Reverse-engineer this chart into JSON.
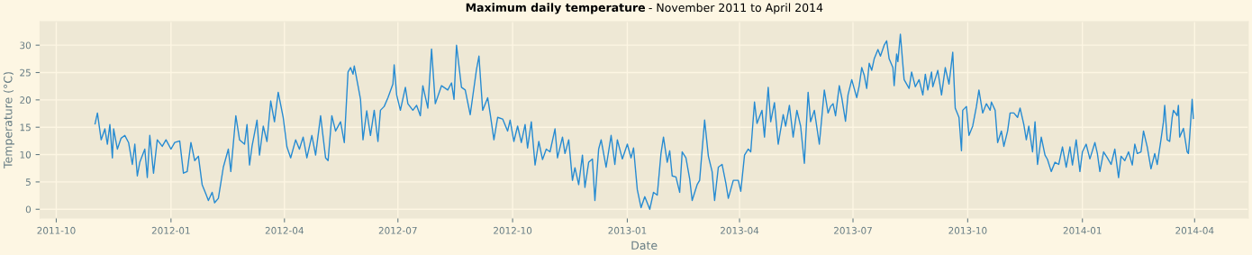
{
  "chart_data": {
    "type": "line",
    "title": "Maximum daily temperature",
    "subtitle": "- November 2011 to April 2014",
    "xlabel": "Date",
    "ylabel": "Temperature (°C)",
    "series": [
      {
        "color": "#268bd2",
        "x": [
          "2011-11-01",
          "2011-11-03",
          "2011-11-06",
          "2011-11-09",
          "2011-11-11",
          "2011-11-13",
          "2011-11-15",
          "2011-11-16",
          "2011-11-19",
          "2011-11-22",
          "2011-11-25",
          "2011-11-28",
          "2011-12-01",
          "2011-12-03",
          "2011-12-05",
          "2011-12-07",
          "2011-12-11",
          "2011-12-13",
          "2011-12-15",
          "2011-12-18",
          "2011-12-21",
          "2011-12-25",
          "2011-12-28",
          "2012-01-01",
          "2012-01-04",
          "2012-01-08",
          "2012-01-11",
          "2012-01-14",
          "2012-01-17",
          "2012-01-20",
          "2012-01-23",
          "2012-01-26",
          "2012-01-29",
          "2012-01-31",
          "2012-02-03",
          "2012-02-05",
          "2012-02-08",
          "2012-02-12",
          "2012-02-16",
          "2012-02-18",
          "2012-02-22",
          "2012-02-25",
          "2012-02-29",
          "2012-03-02",
          "2012-03-04",
          "2012-03-06",
          "2012-03-10",
          "2012-03-12",
          "2012-03-15",
          "2012-03-18",
          "2012-03-21",
          "2012-03-24",
          "2012-03-27",
          "2012-03-31",
          "2012-04-03",
          "2012-04-06",
          "2012-04-10",
          "2012-04-13",
          "2012-04-16",
          "2012-04-19",
          "2012-04-23",
          "2012-04-26",
          "2012-04-30",
          "2012-05-04",
          "2012-05-06",
          "2012-05-09",
          "2012-05-12",
          "2012-05-16",
          "2012-05-19",
          "2012-05-22",
          "2012-05-24",
          "2012-05-26",
          "2012-05-27",
          "2012-05-30",
          "2012-06-01",
          "2012-06-03",
          "2012-06-06",
          "2012-06-09",
          "2012-06-12",
          "2012-06-15",
          "2012-06-17",
          "2012-06-20",
          "2012-06-23",
          "2012-06-27",
          "2012-06-28",
          "2012-06-30",
          "2012-07-03",
          "2012-07-07",
          "2012-07-09",
          "2012-07-13",
          "2012-07-16",
          "2012-07-19",
          "2012-07-21",
          "2012-07-25",
          "2012-07-28",
          "2012-07-31",
          "2012-08-05",
          "2012-08-10",
          "2012-08-13",
          "2012-08-15",
          "2012-08-17",
          "2012-08-21",
          "2012-08-24",
          "2012-08-28",
          "2012-09-02",
          "2012-09-04",
          "2012-09-07",
          "2012-09-11",
          "2012-09-13",
          "2012-09-16",
          "2012-09-19",
          "2012-09-23",
          "2012-09-27",
          "2012-09-29",
          "2012-10-02",
          "2012-10-05",
          "2012-10-08",
          "2012-10-11",
          "2012-10-13",
          "2012-10-16",
          "2012-10-19",
          "2012-10-22",
          "2012-10-25",
          "2012-10-28",
          "2012-10-31",
          "2012-11-04",
          "2012-11-06",
          "2012-11-10",
          "2012-11-12",
          "2012-11-15",
          "2012-11-18",
          "2012-11-20",
          "2012-11-23",
          "2012-11-26",
          "2012-11-28",
          "2012-12-01",
          "2012-12-04",
          "2012-12-06",
          "2012-12-09",
          "2012-12-11",
          "2012-12-15",
          "2012-12-19",
          "2012-12-22",
          "2012-12-24",
          "2012-12-28",
          "2013-01-01",
          "2013-01-04",
          "2013-01-06",
          "2013-01-09",
          "2013-01-12",
          "2013-01-15",
          "2013-01-19",
          "2013-01-22",
          "2013-01-25",
          "2013-01-28",
          "2013-01-30",
          "2013-02-02",
          "2013-02-04",
          "2013-02-06",
          "2013-02-09",
          "2013-02-12",
          "2013-02-14",
          "2013-02-17",
          "2013-02-20",
          "2013-02-22",
          "2013-02-26",
          "2013-02-28",
          "2013-03-04",
          "2013-03-07",
          "2013-03-10",
          "2013-03-12",
          "2013-03-15",
          "2013-03-18",
          "2013-03-21",
          "2013-03-23",
          "2013-03-27",
          "2013-03-31",
          "2013-04-02",
          "2013-04-05",
          "2013-04-08",
          "2013-04-10",
          "2013-04-13",
          "2013-04-15",
          "2013-04-19",
          "2013-04-21",
          "2013-04-24",
          "2013-04-26",
          "2013-04-29",
          "2013-05-02",
          "2013-05-06",
          "2013-05-08",
          "2013-05-11",
          "2013-05-14",
          "2013-05-17",
          "2013-05-20",
          "2013-05-23",
          "2013-05-26",
          "2013-05-28",
          "2013-05-31",
          "2013-06-04",
          "2013-06-08",
          "2013-06-11",
          "2013-06-13",
          "2013-06-15",
          "2013-06-17",
          "2013-06-20",
          "2013-06-22",
          "2013-06-25",
          "2013-06-27",
          "2013-06-30",
          "2013-07-04",
          "2013-07-06",
          "2013-07-08",
          "2013-07-10",
          "2013-07-12",
          "2013-07-14",
          "2013-07-16",
          "2013-07-18",
          "2013-07-21",
          "2013-07-23",
          "2013-07-26",
          "2013-07-28",
          "2013-07-30",
          "2013-08-02",
          "2013-08-03",
          "2013-08-05",
          "2013-08-06",
          "2013-08-08",
          "2013-08-11",
          "2013-08-15",
          "2013-08-17",
          "2013-08-20",
          "2013-08-23",
          "2013-08-26",
          "2013-08-28",
          "2013-08-30",
          "2013-09-02",
          "2013-09-03",
          "2013-09-07",
          "2013-09-10",
          "2013-09-13",
          "2013-09-16",
          "2013-09-19",
          "2013-09-21",
          "2013-09-24",
          "2013-09-26",
          "2013-09-27",
          "2013-09-30",
          "2013-10-02",
          "2013-10-05",
          "2013-10-08",
          "2013-10-10",
          "2013-10-13",
          "2013-10-16",
          "2013-10-19",
          "2013-10-20",
          "2013-10-23",
          "2013-10-25",
          "2013-10-28",
          "2013-10-30",
          "2013-11-02",
          "2013-11-04",
          "2013-11-07",
          "2013-11-10",
          "2013-11-12",
          "2013-11-15",
          "2013-11-17",
          "2013-11-19",
          "2013-11-22",
          "2013-11-24",
          "2013-11-26",
          "2013-11-29",
          "2013-12-02",
          "2013-12-04",
          "2013-12-07",
          "2013-12-10",
          "2013-12-13",
          "2013-12-16",
          "2013-12-19",
          "2013-12-22",
          "2013-12-24",
          "2013-12-27",
          "2013-12-30",
          "2014-01-01",
          "2014-01-04",
          "2014-01-07",
          "2014-01-11",
          "2014-01-13",
          "2014-01-15",
          "2014-01-18",
          "2014-01-21",
          "2014-01-24",
          "2014-01-27",
          "2014-01-30",
          "2014-02-01",
          "2014-02-04",
          "2014-02-07",
          "2014-02-10",
          "2014-02-12",
          "2014-02-14",
          "2014-02-17",
          "2014-02-19",
          "2014-02-22",
          "2014-02-25",
          "2014-02-28",
          "2014-03-02",
          "2014-03-05",
          "2014-03-07",
          "2014-03-08",
          "2014-03-10",
          "2014-03-12",
          "2014-03-14",
          "2014-03-15",
          "2014-03-18",
          "2014-03-19",
          "2014-03-20",
          "2014-03-23",
          "2014-03-26",
          "2014-03-27",
          "2014-03-28",
          "2014-03-30",
          "2014-03-31"
        ],
        "values": [
          15.5,
          17.6,
          12.7,
          14.7,
          11.9,
          15.5,
          9.4,
          14.7,
          11,
          13,
          13.5,
          12.2,
          8.2,
          11.9,
          6.1,
          8.6,
          11,
          5.8,
          13.5,
          6.6,
          12.7,
          11.5,
          12.7,
          11,
          12.2,
          12.5,
          6.6,
          6.9,
          12.2,
          8.9,
          9.7,
          4.5,
          2.8,
          1.6,
          3.1,
          1.2,
          2.0,
          7.7,
          11,
          6.9,
          17.1,
          12.7,
          11.9,
          15.5,
          8.1,
          11.5,
          16.3,
          9.9,
          15.2,
          12.4,
          19.8,
          16,
          21.4,
          16.8,
          11.4,
          9.4,
          12.7,
          11,
          13.2,
          9.4,
          13.5,
          9.9,
          17.1,
          9.4,
          8.9,
          17.1,
          14.3,
          16,
          12.2,
          25.1,
          25.9,
          24.7,
          26.2,
          22.6,
          20.1,
          12.7,
          18,
          13.5,
          18.1,
          12.4,
          18.1,
          18.8,
          20.4,
          22.9,
          26.4,
          20.9,
          18.1,
          22.3,
          19.3,
          18.1,
          19,
          17.1,
          22.6,
          18.5,
          29.3,
          19.3,
          22.6,
          21.8,
          23.1,
          20.1,
          30,
          22.3,
          21.8,
          17.3,
          25.5,
          28,
          18.1,
          20.4,
          17.5,
          12.7,
          16.8,
          16.5,
          14.3,
          16.3,
          12.4,
          15.2,
          12.2,
          15.5,
          11.2,
          16,
          8.1,
          12.4,
          9.1,
          11,
          10.5,
          14.7,
          9.4,
          13.2,
          10.2,
          12.7,
          5.3,
          7.6,
          4.5,
          9.9,
          4,
          8.6,
          9.2,
          1.6,
          11,
          12.7,
          7.7,
          13.5,
          8.2,
          12.7,
          9.2,
          11.9,
          9.4,
          11.2,
          3.6,
          0.3,
          2.3,
          0,
          3.1,
          2.6,
          10.2,
          13.2,
          8.6,
          10.7,
          6.1,
          5.9,
          3.1,
          10.5,
          9.4,
          5.6,
          1.6,
          4.5,
          5.3,
          16.3,
          9.7,
          6.9,
          1.6,
          7.7,
          8.2,
          4.8,
          2.0,
          5.3,
          5.3,
          3.3,
          9.9,
          11,
          10.5,
          19.6,
          15.7,
          18.1,
          13.2,
          22.3,
          16,
          19.5,
          11.9,
          17.3,
          15.2,
          19,
          13.2,
          18.1,
          15.2,
          8.4,
          21.4,
          16,
          18.1,
          11.9,
          21.8,
          17.6,
          18.8,
          19.3,
          17.1,
          22.6,
          20.4,
          16.1,
          20.9,
          23.7,
          20.4,
          22.6,
          25.9,
          24.5,
          22.1,
          26.7,
          25.4,
          27.5,
          29.2,
          28,
          30,
          30.8,
          27.5,
          25.9,
          22.6,
          28.4,
          27,
          32,
          23.7,
          22.1,
          25.1,
          22.4,
          23.7,
          20.9,
          24.7,
          21.8,
          25.1,
          22.4,
          25.4,
          20.9,
          25.9,
          22.9,
          28.7,
          18.5,
          16.8,
          10.7,
          18.1,
          18.8,
          13.5,
          15.2,
          18.8,
          21.8,
          17.6,
          19.3,
          18.1,
          19.6,
          18.1,
          12.2,
          14.3,
          11.5,
          14.3,
          17.6,
          17.6,
          16.8,
          18.5,
          15.5,
          12.7,
          15.2,
          10.5,
          16,
          8.2,
          13.2,
          9.9,
          9.1,
          6.9,
          8.6,
          8.2,
          11.4,
          7.7,
          11.4,
          8.1,
          12.7,
          6.9,
          10.5,
          11.9,
          9.2,
          12.2,
          10.2,
          6.9,
          10.5,
          9.4,
          8.2,
          11,
          5.8,
          9.7,
          8.9,
          10.5,
          8.1,
          11.9,
          10.2,
          10.5,
          14.3,
          11.4,
          7.4,
          10.2,
          8.2,
          12.7,
          16,
          19,
          12.7,
          12.4,
          16.8,
          18.1,
          17.1,
          19,
          13.2,
          14.8,
          10.5,
          10.2,
          13.2,
          20.1,
          16.5
        ]
      }
    ],
    "xlim": [
      "2011-09-18",
      "2014-05-14"
    ],
    "xticks": [
      {
        "value": "2011-10-01",
        "label": "2011-10"
      },
      {
        "value": "2012-01-01",
        "label": "2012-01"
      },
      {
        "value": "2012-04-01",
        "label": "2012-04"
      },
      {
        "value": "2012-07-01",
        "label": "2012-07"
      },
      {
        "value": "2012-10-01",
        "label": "2012-10"
      },
      {
        "value": "2013-01-01",
        "label": "2013-01"
      },
      {
        "value": "2013-04-01",
        "label": "2013-04"
      },
      {
        "value": "2013-07-01",
        "label": "2013-07"
      },
      {
        "value": "2013-10-01",
        "label": "2013-10"
      },
      {
        "value": "2014-01-01",
        "label": "2014-01"
      },
      {
        "value": "2014-04-01",
        "label": "2014-04"
      }
    ],
    "ylim": [
      -1.6,
      34.3
    ],
    "yticks": [
      0,
      5,
      10,
      15,
      20,
      25,
      30
    ],
    "grid": true
  }
}
